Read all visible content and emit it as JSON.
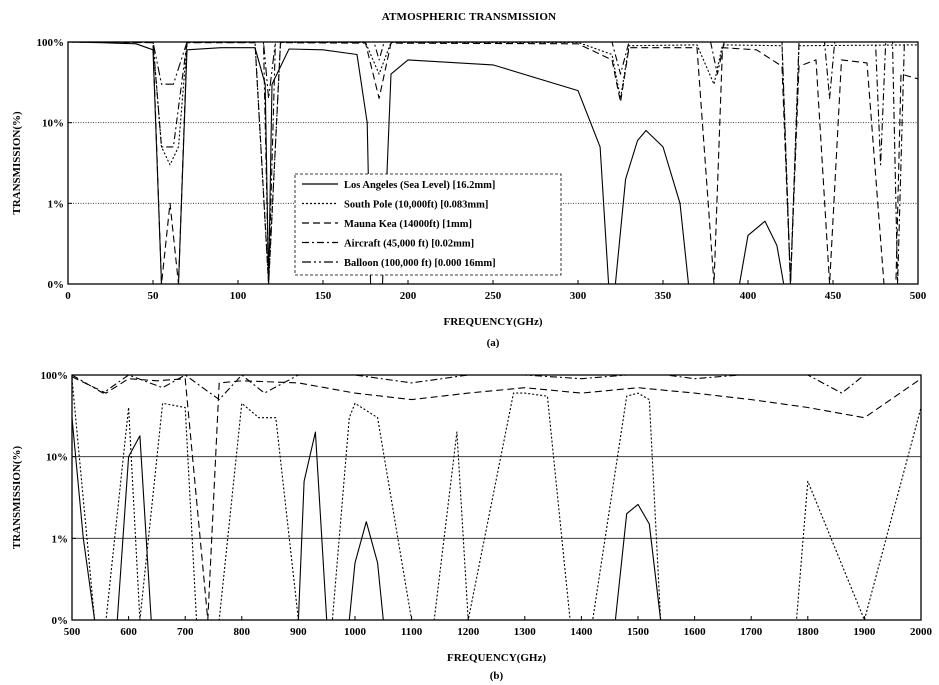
{
  "title": "ATMOSPHERIC TRANSMISSION",
  "chart_data": [
    {
      "panel": "(a)",
      "type": "line",
      "xlabel": "FREQUENCY(GHz)",
      "ylabel": "TRANSMISSION(%)",
      "xlim": [
        0,
        500
      ],
      "xticks": [
        "0",
        "50",
        "100",
        "150",
        "200",
        "250",
        "300",
        "350",
        "400",
        "450",
        "500"
      ],
      "yticks": [
        "0%",
        "1%",
        "10%",
        "100%"
      ],
      "grid": "horizontal at 1% and 10%",
      "legend_position": "center",
      "legend": [
        {
          "label": "Los Angeles (Sea Level) [16.2mm]",
          "dash": "solid"
        },
        {
          "label": "South Pole (10,000ft) [0.083mm]",
          "dash": "dotted"
        },
        {
          "label": "Mauna Kea (14000ft) [1mm]",
          "dash": "dashed"
        },
        {
          "label": "Aircraft (45,000 ft) [0.02mm]",
          "dash": "dash-dot"
        },
        {
          "label": "Balloon (100,000 ft) [0.000 16mm]",
          "dash": "dash-dot-dot"
        }
      ],
      "series": [
        {
          "name": "Los Angeles (Sea Level) [16.2mm]",
          "x": [
            0,
            20,
            40,
            50,
            55,
            58,
            62,
            65,
            70,
            90,
            110,
            116,
            118,
            120,
            130,
            150,
            170,
            176,
            178,
            185,
            190,
            200,
            250,
            300,
            313,
            318,
            322,
            328,
            335,
            340,
            350,
            360,
            365,
            370,
            380,
            395,
            400,
            410,
            417,
            421,
            500
          ],
          "y": [
            100,
            98,
            95,
            80,
            0,
            0,
            0,
            0,
            80,
            85,
            85,
            30,
            0,
            30,
            82,
            80,
            70,
            10,
            0,
            0,
            40,
            60,
            52,
            25,
            5,
            0,
            0,
            2,
            6,
            8,
            5,
            1,
            0,
            0,
            0,
            0,
            0.4,
            0.6,
            0.3,
            0,
            0
          ]
        },
        {
          "name": "South Pole (10,000ft) [0.083mm]",
          "x": [
            0,
            50,
            55,
            60,
            65,
            70,
            110,
            118,
            125,
            175,
            183,
            190,
            300,
            320,
            325,
            330,
            370,
            380,
            385,
            420,
            425,
            430,
            500
          ],
          "y": [
            100,
            99,
            5,
            3,
            5,
            99,
            99,
            0,
            99,
            99,
            40,
            99,
            99,
            70,
            20,
            90,
            92,
            30,
            92,
            90,
            0,
            90,
            92
          ]
        },
        {
          "name": "Mauna Kea (14000ft) [1mm]",
          "x": [
            0,
            50,
            55,
            60,
            65,
            70,
            110,
            118,
            125,
            175,
            183,
            190,
            300,
            320,
            325,
            330,
            370,
            380,
            385,
            405,
            420,
            425,
            430,
            440,
            448,
            455,
            470,
            480,
            487,
            490,
            500
          ],
          "y": [
            100,
            98,
            0,
            1,
            0,
            98,
            98,
            0,
            98,
            97,
            20,
            97,
            95,
            60,
            18,
            85,
            85,
            0,
            85,
            80,
            50,
            0,
            50,
            60,
            0,
            60,
            55,
            0,
            0,
            40,
            35
          ]
        },
        {
          "name": "Aircraft (45,000 ft) [0.02mm]",
          "x": [
            0,
            50,
            55,
            62,
            70,
            115,
            118,
            122,
            180,
            183,
            186,
            320,
            325,
            330,
            378,
            382,
            386,
            420,
            425,
            430,
            445,
            448,
            451,
            475,
            478,
            481,
            485,
            488,
            492,
            500
          ],
          "y": [
            100,
            100,
            5,
            5,
            100,
            100,
            0,
            100,
            100,
            60,
            100,
            100,
            40,
            100,
            100,
            40,
            100,
            100,
            0,
            100,
            100,
            20,
            100,
            100,
            3,
            100,
            100,
            0,
            100,
            100
          ]
        },
        {
          "name": "Balloon (100,000 ft) [0.000 16mm]",
          "x": [
            0,
            50,
            55,
            62,
            70,
            115,
            118,
            122,
            500
          ],
          "y": [
            100,
            100,
            30,
            30,
            100,
            100,
            20,
            100,
            100
          ]
        }
      ]
    },
    {
      "panel": "(b)",
      "type": "line",
      "xlabel": "FREQUENCY(GHz)",
      "ylabel": "TRANSMISSION(%)",
      "xlim": [
        500,
        2000
      ],
      "xticks": [
        "500",
        "600",
        "700",
        "800",
        "900",
        "1000",
        "1100",
        "1200",
        "1300",
        "1400",
        "1500",
        "1600",
        "1700",
        "1800",
        "1900",
        "2000"
      ],
      "yticks": [
        "0%",
        "1%",
        "10%",
        "100%"
      ],
      "grid": "horizontal at 1% and 10%",
      "series": [
        {
          "name": "Los Angeles (Sea Level) [16.2mm]",
          "x": [
            500,
            520,
            540,
            580,
            600,
            620,
            640,
            900,
            910,
            930,
            950,
            990,
            1000,
            1020,
            1040,
            1050,
            1400,
            1460,
            1480,
            1500,
            1520,
            1540,
            1990,
            2000
          ],
          "y": [
            30,
            1,
            0,
            0,
            10,
            18,
            0,
            0,
            5,
            20,
            0,
            0,
            0.5,
            1.6,
            0.5,
            0,
            0,
            0,
            2,
            2.6,
            1.5,
            0,
            0,
            0.1
          ]
        },
        {
          "name": "Mauna Kea (14000ft) [1mm]",
          "x": [
            500,
            540,
            560,
            600,
            620,
            660,
            700,
            720,
            740,
            760,
            800,
            830,
            860,
            900,
            960,
            990,
            1000,
            1040,
            1100,
            1140,
            1180,
            1200,
            1280,
            1300,
            1340,
            1380,
            1420,
            1480,
            1500,
            1520,
            1540,
            1600,
            1660,
            1700,
            1780,
            1800,
            1900,
            2000
          ],
          "y": [
            90,
            0,
            0,
            40,
            0,
            45,
            40,
            0,
            0,
            0,
            45,
            30,
            30,
            0,
            0,
            30,
            45,
            30,
            0,
            0,
            20,
            0,
            60,
            60,
            55,
            0,
            0,
            55,
            60,
            50,
            0,
            0,
            0,
            0,
            0,
            5,
            0,
            40
          ]
        },
        {
          "name": "South Pole (10,000ft) [0.083mm]",
          "x": [
            500,
            560,
            600,
            650,
            700,
            740,
            760,
            800,
            900,
            1000,
            1100,
            1200,
            1300,
            1400,
            1500,
            1600,
            1700,
            1800,
            1900,
            2000
          ],
          "y": [
            95,
            60,
            90,
            85,
            90,
            0,
            80,
            85,
            80,
            60,
            50,
            60,
            70,
            60,
            70,
            60,
            50,
            40,
            30,
            90
          ]
        },
        {
          "name": "Aircraft (45,000 ft) [0.02mm]",
          "x": [
            500,
            555,
            600,
            660,
            700,
            760,
            800,
            840,
            900,
            1000,
            1100,
            1200,
            1300,
            1400,
            1480,
            1550,
            1600,
            1680,
            1700,
            1800,
            1860,
            1900,
            2000
          ],
          "y": [
            100,
            60,
            100,
            70,
            100,
            50,
            100,
            60,
            100,
            100,
            80,
            100,
            100,
            90,
            100,
            100,
            90,
            100,
            100,
            100,
            60,
            100,
            100
          ]
        },
        {
          "name": "Balloon (100,000 ft) [0.000 16mm]",
          "x": [
            500,
            2000
          ],
          "y": [
            100,
            100
          ]
        }
      ]
    }
  ]
}
